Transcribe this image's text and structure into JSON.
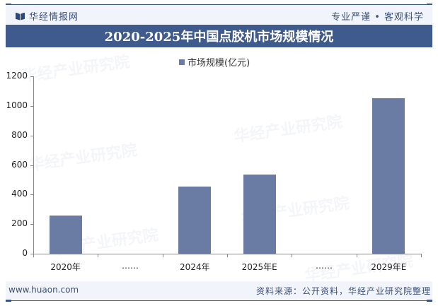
{
  "header": {
    "brand_name": "华经情报网",
    "brand_icon": "book-icon",
    "slogan": "专业严谨 • 客观科学"
  },
  "title": "2020-2025年中国点胶机市场规模情况",
  "legend": {
    "label": "市场规模(亿元)",
    "color": "#6a7ca3"
  },
  "footer": {
    "website": "www.huaon.com",
    "source": "资料来源：公开资料，华经产业研究院整理"
  },
  "watermark": "华经产业研究院",
  "colors": {
    "title_bar": "#3f5a8c",
    "bar": "#6a7ca3",
    "text_accent": "#3b4f78"
  },
  "chart_data": {
    "type": "bar",
    "title": "2020-2025年中国点胶机市场规模情况",
    "xlabel": "",
    "ylabel": "",
    "categories": [
      "2020年",
      "……",
      "2024年",
      "2025年E",
      "……",
      "2029年E"
    ],
    "series": [
      {
        "name": "市场规模(亿元)",
        "values": [
          260,
          null,
          455,
          537,
          null,
          1050
        ]
      }
    ],
    "ylim": [
      0,
      1200
    ],
    "yticks": [
      "0",
      "200",
      "400",
      "600",
      "800",
      "1000",
      "1200"
    ],
    "grid": false,
    "legend_position": "top"
  }
}
